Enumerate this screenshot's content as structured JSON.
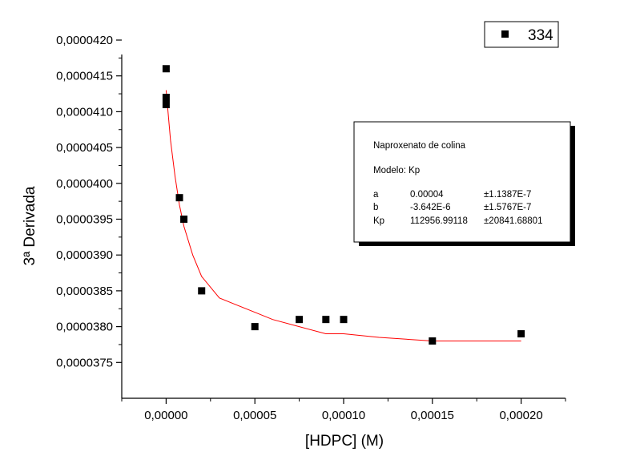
{
  "chart_data": {
    "type": "scatter",
    "xlabel": "[HDPC] (M)",
    "ylabel": "3ª Derivada",
    "xlim": [
      -2.5e-05,
      0.000225
    ],
    "ylim": [
      3.7e-05,
      4.2e-05
    ],
    "x_ticks": [
      "0,00000",
      "0,00005",
      "0,00010",
      "0,00015",
      "0,00020"
    ],
    "x_tick_values": [
      0,
      5e-05,
      0.0001,
      0.00015,
      0.0002
    ],
    "y_ticks": [
      "0,0000375",
      "0,0000380",
      "0,0000385",
      "0,0000390",
      "0,0000395",
      "0,0000400",
      "0,0000405",
      "0,0000410",
      "0,0000415",
      "0,0000420"
    ],
    "y_tick_values": [
      3.75e-05,
      3.8e-05,
      3.85e-05,
      3.9e-05,
      3.95e-05,
      4e-05,
      4.05e-05,
      4.1e-05,
      4.15e-05,
      4.2e-05
    ],
    "legend_position": "top-right",
    "grid": false,
    "series": [
      {
        "name": "334",
        "color": "#000000",
        "marker": "square",
        "x": [
          0,
          0,
          0,
          7.5e-06,
          1e-05,
          2e-05,
          5e-05,
          7.5e-05,
          9e-05,
          0.0001,
          0.00015,
          0.0002
        ],
        "y": [
          4.16e-05,
          4.12e-05,
          4.11e-05,
          3.98e-05,
          3.95e-05,
          3.85e-05,
          3.8e-05,
          3.81e-05,
          3.81e-05,
          3.81e-05,
          3.78e-05,
          3.79e-05
        ]
      }
    ],
    "fit": {
      "color": "#ff0000",
      "x": [
        0,
        2.5e-06,
        5e-06,
        7.5e-06,
        1e-05,
        1.5e-05,
        2e-05,
        3e-05,
        4e-05,
        5e-05,
        6e-05,
        7.5e-05,
        9e-05,
        0.0001,
        0.00012,
        0.00015,
        0.00018,
        0.0002
      ],
      "y": [
        4.13e-05,
        4.06e-05,
        4.01e-05,
        3.97e-05,
        3.94e-05,
        3.9e-05,
        3.87e-05,
        3.84e-05,
        3.83e-05,
        3.82e-05,
        3.81e-05,
        3.8e-05,
        3.79e-05,
        3.79e-05,
        3.785e-05,
        3.78e-05,
        3.78e-05,
        3.78e-05
      ]
    },
    "fit_box": {
      "title": "Naproxenato de colina",
      "model": "Modelo: Kp",
      "rows": [
        {
          "param": "a",
          "value": "0.00004",
          "error": "±1.1387E-7"
        },
        {
          "param": "b",
          "value": "-3.642E-6",
          "error": "±1.5767E-7"
        },
        {
          "param": "Kp",
          "value": "112956.99118",
          "error": "±20841.68801"
        }
      ]
    }
  }
}
